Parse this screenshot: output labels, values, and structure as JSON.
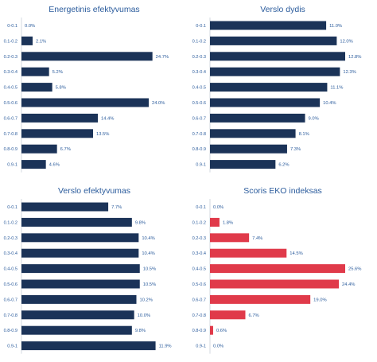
{
  "colors": {
    "navy": "#1b3358",
    "red": "#e03a4a",
    "text": "#2a5b9c",
    "axis": "#c9cfd8"
  },
  "chart_data": [
    {
      "type": "bar",
      "orientation": "horizontal",
      "title": "Energetinis efektyvumas",
      "categories": [
        "0-0.1",
        "0.1-0.2",
        "0.2-0.3",
        "0.3-0.4",
        "0.4-0.5",
        "0.5-0.6",
        "0.6-0.7",
        "0.7-0.8",
        "0.8-0.9",
        "0.9-1"
      ],
      "values": [
        0.0,
        2.1,
        24.7,
        5.2,
        5.8,
        24.0,
        14.4,
        13.5,
        6.7,
        4.6
      ],
      "labels": [
        "0.0%",
        "2.1%",
        "24.7%",
        "5.2%",
        "5.8%",
        "24.0%",
        "14.4%",
        "13.5%",
        "6.7%",
        "4.6%"
      ],
      "xlim": [
        0,
        25.5
      ],
      "color": "#1b3358"
    },
    {
      "type": "bar",
      "orientation": "horizontal",
      "title": "Verslo dydis",
      "categories": [
        "0-0.1",
        "0.1-0.2",
        "0.2-0.3",
        "0.3-0.4",
        "0.4-0.5",
        "0.5-0.6",
        "0.6-0.7",
        "0.7-0.8",
        "0.8-0.9",
        "0.9-1"
      ],
      "values": [
        11.0,
        12.0,
        12.8,
        12.3,
        11.1,
        10.4,
        9.0,
        8.1,
        7.3,
        6.2
      ],
      "labels": [
        "11.0%",
        "12.0%",
        "12.8%",
        "12.3%",
        "11.1%",
        "10.4%",
        "9.0%",
        "8.1%",
        "7.3%",
        "6.2%"
      ],
      "xlim": [
        0,
        12.8
      ],
      "color": "#1b3358"
    },
    {
      "type": "bar",
      "orientation": "horizontal",
      "title": "Verslo efektyvumas",
      "categories": [
        "0-0.1",
        "0.1-0.2",
        "0.2-0.3",
        "0.3-0.4",
        "0.4-0.5",
        "0.5-0.6",
        "0.6-0.7",
        "0.7-0.8",
        "0.8-0.9",
        "0.9-1"
      ],
      "values": [
        7.7,
        9.8,
        10.4,
        10.4,
        10.5,
        10.5,
        10.2,
        10.0,
        9.8,
        11.9
      ],
      "labels": [
        "7.7%",
        "9.8%",
        "10.4%",
        "10.4%",
        "10.5%",
        "10.5%",
        "10.2%",
        "10.0%",
        "9.8%",
        "11.9%"
      ],
      "xlim": [
        0,
        12.0
      ],
      "color": "#1b3358"
    },
    {
      "type": "bar",
      "orientation": "horizontal",
      "title": "Scoris EKO indeksas",
      "categories": [
        "0-0.1",
        "0.1-0.2",
        "0.2-0.3",
        "0.3-0.4",
        "0.4-0.5",
        "0.5-0.6",
        "0.6-0.7",
        "0.7-0.8",
        "0.8-0.9",
        "0.9-1"
      ],
      "values": [
        0.0,
        1.8,
        7.4,
        14.5,
        25.6,
        24.4,
        19.0,
        6.7,
        0.6,
        0.0
      ],
      "labels": [
        "0.0%",
        "1.8%",
        "7.4%",
        "14.5%",
        "25.6%",
        "24.4%",
        "19.0%",
        "6.7%",
        "0.6%",
        "0.0%"
      ],
      "xlim": [
        0,
        25.6
      ],
      "color": "#e03a4a"
    }
  ]
}
